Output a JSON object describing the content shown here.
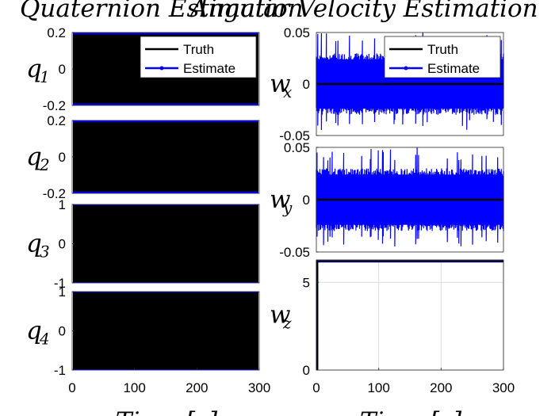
{
  "figure": {
    "left_title": "Quaternion Estimation",
    "right_title": "Angular Velocity Estimation",
    "left_xlabel": "Time [s]",
    "right_xlabel": "Time [s]"
  },
  "colors": {
    "truth": "#000000",
    "estimate": "#0000ff",
    "axes": "#262626",
    "grid": "#dcdcdc"
  },
  "chart_data": [
    {
      "type": "line",
      "panel": "q1",
      "ylabel_base": "q",
      "ylabel_sub": "1",
      "xlim": [
        0,
        300
      ],
      "ylim": [
        -0.2,
        0.2
      ],
      "yticks": [
        "0.2",
        "0",
        "-0.2"
      ],
      "xticks": [],
      "legend": [
        "Truth",
        "Estimate"
      ],
      "legend_position": "top-right",
      "series": [
        {
          "name": "Estimate",
          "style": "band",
          "range": [
            -0.2,
            0.2
          ]
        },
        {
          "name": "Truth",
          "style": "band",
          "range": [
            -0.19,
            0.19
          ]
        }
      ]
    },
    {
      "type": "line",
      "panel": "q2",
      "ylabel_base": "q",
      "ylabel_sub": "2",
      "xlim": [
        0,
        300
      ],
      "ylim": [
        -0.2,
        0.2
      ],
      "yticks": [
        "0.2",
        "0",
        "-0.2"
      ],
      "xticks": [],
      "series": [
        {
          "name": "Estimate",
          "style": "band",
          "range": [
            -0.2,
            0.2
          ]
        },
        {
          "name": "Truth",
          "style": "band",
          "range": [
            -0.19,
            0.19
          ]
        }
      ]
    },
    {
      "type": "line",
      "panel": "q3",
      "ylabel_base": "q",
      "ylabel_sub": "3",
      "xlim": [
        0,
        300
      ],
      "ylim": [
        -1,
        1
      ],
      "yticks": [
        "1",
        "0",
        "-1"
      ],
      "xticks": [],
      "series": [
        {
          "name": "Estimate",
          "style": "band",
          "range": [
            -1,
            1
          ]
        },
        {
          "name": "Truth",
          "style": "band",
          "range": [
            -0.98,
            0.98
          ]
        }
      ]
    },
    {
      "type": "line",
      "panel": "q4",
      "ylabel_base": "q",
      "ylabel_sub": "4",
      "xlim": [
        0,
        300
      ],
      "ylim": [
        -1,
        1
      ],
      "yticks": [
        "1",
        "0",
        "-1"
      ],
      "xticks": [
        "0",
        "100",
        "200",
        "300"
      ],
      "series": [
        {
          "name": "Estimate",
          "style": "band",
          "range": [
            -1,
            1
          ]
        },
        {
          "name": "Truth",
          "style": "band",
          "range": [
            -0.98,
            0.98
          ]
        }
      ]
    },
    {
      "type": "line",
      "panel": "wx",
      "ylabel_base": "w",
      "ylabel_sub": "x",
      "xlim": [
        0,
        300
      ],
      "ylim": [
        -0.05,
        0.05
      ],
      "yticks": [
        "0.05",
        "0",
        "-0.05"
      ],
      "xticks": [],
      "legend": [
        "Truth",
        "Estimate"
      ],
      "legend_position": "top-right",
      "series": [
        {
          "name": "Estimate",
          "style": "noise",
          "center": 0,
          "range": [
            -0.03,
            0.03
          ],
          "peak": [
            -0.045,
            0.05
          ]
        },
        {
          "name": "Truth",
          "style": "constant",
          "value": 0
        }
      ]
    },
    {
      "type": "line",
      "panel": "wy",
      "ylabel_base": "w",
      "ylabel_sub": "y",
      "xlim": [
        0,
        300
      ],
      "ylim": [
        -0.05,
        0.05
      ],
      "yticks": [
        "0.05",
        "0",
        "-0.05"
      ],
      "xticks": [],
      "series": [
        {
          "name": "Estimate",
          "style": "noise",
          "center": 0,
          "range": [
            -0.03,
            0.03
          ],
          "peak": [
            -0.045,
            0.05
          ]
        },
        {
          "name": "Truth",
          "style": "constant",
          "value": 0
        }
      ]
    },
    {
      "type": "line",
      "panel": "wz",
      "ylabel_base": "w",
      "ylabel_sub": "z",
      "xlim": [
        0,
        300
      ],
      "ylim": [
        0,
        6.28
      ],
      "yticks": [
        "5",
        "0"
      ],
      "xticks": [
        "0",
        "100",
        "200",
        "300"
      ],
      "grid": true,
      "series": [
        {
          "name": "Estimate",
          "style": "step",
          "start": 0,
          "value": 6.2
        },
        {
          "name": "Truth",
          "style": "step",
          "start": 0,
          "value": 6.2
        }
      ]
    }
  ]
}
